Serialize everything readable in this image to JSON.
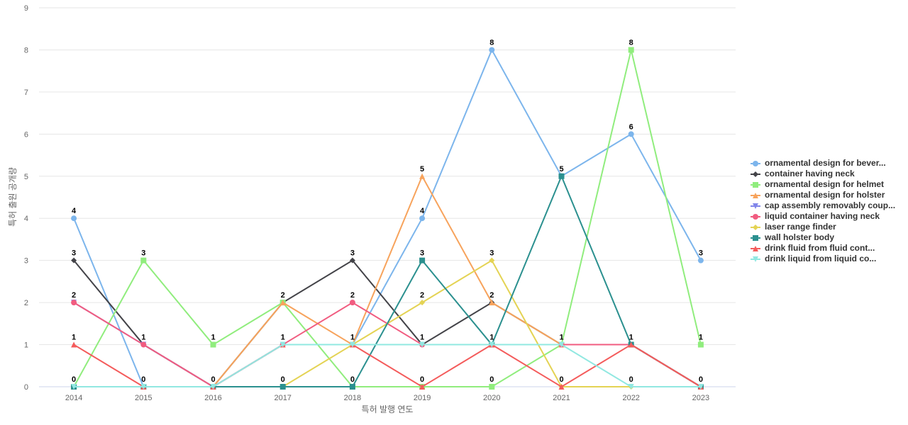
{
  "chart_data": {
    "type": "line",
    "x_label": "특허 발행 연도",
    "y_label": "특허 출원 공개량",
    "categories": [
      "2014",
      "2015",
      "2016",
      "2017",
      "2018",
      "2019",
      "2020",
      "2021",
      "2022",
      "2023"
    ],
    "ylim": [
      0,
      9
    ],
    "yticks": [
      0,
      1,
      2,
      3,
      4,
      5,
      6,
      7,
      8,
      9
    ],
    "grid": true,
    "legend": "right",
    "series": [
      {
        "name": "ornamental design for bever...",
        "color": "#7cb5ec",
        "values": [
          4,
          0,
          0,
          1,
          1,
          4,
          8,
          5,
          6,
          3
        ]
      },
      {
        "name": "container having neck",
        "color": "#434348",
        "values": [
          3,
          1,
          0,
          2,
          3,
          1,
          2,
          1,
          1,
          0
        ]
      },
      {
        "name": "ornamental design for helmet",
        "color": "#90ed7d",
        "values": [
          0,
          3,
          1,
          2,
          0,
          0,
          0,
          1,
          8,
          1
        ]
      },
      {
        "name": "ornamental design for holster",
        "color": "#f7a35c",
        "values": [
          0,
          0,
          0,
          2,
          1,
          5,
          2,
          1,
          1,
          0
        ]
      },
      {
        "name": "cap assembly removably coup...",
        "color": "#8085e9",
        "values": [
          2,
          1,
          0,
          1,
          1,
          1,
          1,
          1,
          1,
          0
        ]
      },
      {
        "name": "liquid container having neck",
        "color": "#f15c80",
        "values": [
          2,
          1,
          0,
          1,
          2,
          1,
          1,
          1,
          1,
          0
        ]
      },
      {
        "name": "laser range finder",
        "color": "#e4d354",
        "values": [
          0,
          0,
          0,
          0,
          1,
          2,
          3,
          0,
          0,
          0
        ]
      },
      {
        "name": "wall holster body",
        "color": "#2b908f",
        "values": [
          0,
          0,
          0,
          0,
          0,
          3,
          1,
          5,
          1,
          0
        ]
      },
      {
        "name": "drink fluid from fluid cont...",
        "color": "#f45b5b",
        "values": [
          1,
          0,
          0,
          1,
          1,
          0,
          1,
          0,
          1,
          0
        ]
      },
      {
        "name": "drink liquid from liquid co...",
        "color": "#91e8e1",
        "values": [
          0,
          0,
          0,
          1,
          1,
          1,
          1,
          1,
          0,
          0
        ]
      }
    ]
  }
}
